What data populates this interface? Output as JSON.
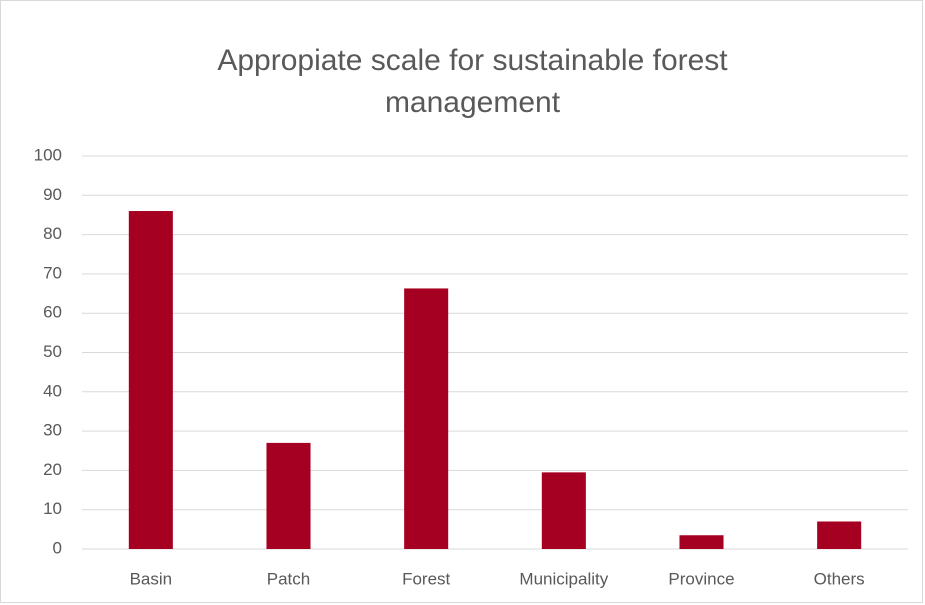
{
  "chart_data": {
    "type": "bar",
    "title": "Appropiate scale for sustainable forest management",
    "categories": [
      "Basin",
      "Patch",
      "Forest",
      "Municipality",
      "Province",
      "Others"
    ],
    "values": [
      86,
      27,
      66.3,
      19.5,
      3.5,
      7
    ],
    "color": "#a50021",
    "ylim": [
      0,
      100
    ],
    "yticks": [
      0,
      10,
      20,
      30,
      40,
      50,
      60,
      70,
      80,
      90,
      100
    ],
    "grid": true
  }
}
